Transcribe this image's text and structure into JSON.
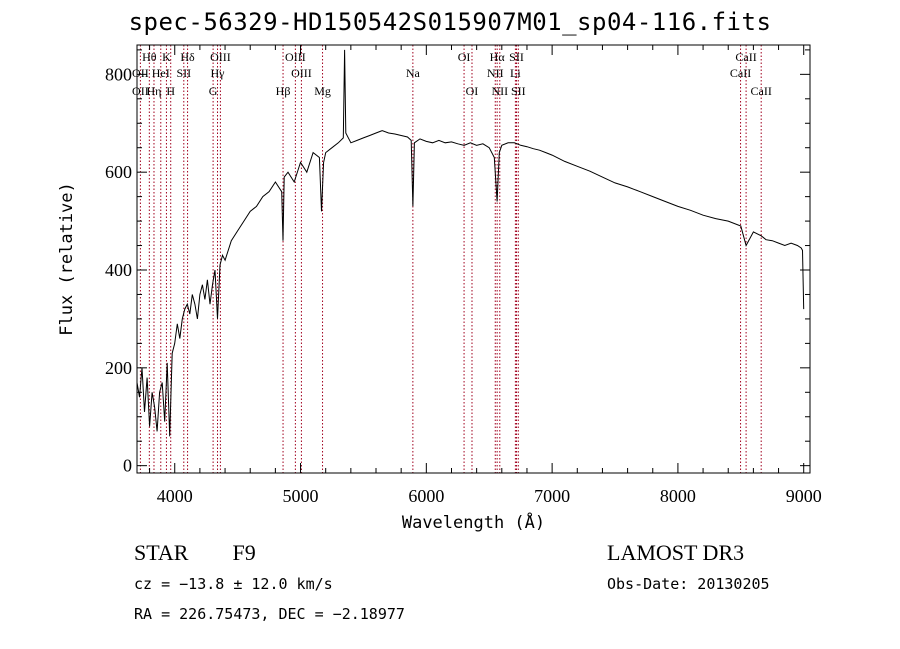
{
  "title": "spec-56329-HD150542S015907M01_sp04-116.fits",
  "info": {
    "class_label": "STAR",
    "subclass": "F9",
    "survey": "LAMOST DR3",
    "cz": "cz = −13.8 ± 12.0 km/s",
    "obs_date": "Obs-Date: 20130205",
    "radec": "RA = 226.75473, DEC =  −2.18977"
  },
  "colors": {
    "line_marker": "#a0001e",
    "spectrum": "#000000"
  },
  "chart_data": {
    "type": "line",
    "xlabel": "Wavelength (Å)",
    "ylabel": "Flux (relative)",
    "xlim": [
      3700,
      9050
    ],
    "ylim": [
      -15,
      860
    ],
    "xticks": [
      4000,
      5000,
      6000,
      7000,
      8000,
      9000
    ],
    "yticks": [
      0,
      200,
      400,
      600,
      800
    ],
    "xtick_labels": [
      "4000",
      "5000",
      "6000",
      "7000",
      "8000",
      "9000"
    ],
    "ytick_labels": [
      "0",
      "200",
      "400",
      "600",
      "800"
    ],
    "spectrum": {
      "x": [
        3700,
        3720,
        3740,
        3760,
        3780,
        3800,
        3820,
        3840,
        3860,
        3880,
        3900,
        3920,
        3940,
        3960,
        3980,
        4000,
        4020,
        4040,
        4060,
        4080,
        4100,
        4120,
        4140,
        4160,
        4180,
        4200,
        4220,
        4240,
        4260,
        4280,
        4300,
        4320,
        4340,
        4360,
        4380,
        4400,
        4450,
        4500,
        4550,
        4600,
        4650,
        4700,
        4750,
        4800,
        4850,
        4861,
        4870,
        4900,
        4950,
        5000,
        5050,
        5100,
        5150,
        5167,
        5183,
        5200,
        5250,
        5300,
        5340,
        5350,
        5360,
        5400,
        5450,
        5500,
        5550,
        5600,
        5650,
        5700,
        5750,
        5800,
        5850,
        5880,
        5893,
        5905,
        5950,
        6000,
        6050,
        6100,
        6150,
        6200,
        6250,
        6300,
        6350,
        6400,
        6450,
        6500,
        6540,
        6563,
        6580,
        6600,
        6650,
        6700,
        6750,
        6800,
        6850,
        6900,
        6950,
        7000,
        7100,
        7200,
        7300,
        7400,
        7500,
        7600,
        7700,
        7800,
        7900,
        8000,
        8100,
        8200,
        8300,
        8400,
        8500,
        8542,
        8600,
        8662,
        8700,
        8750,
        8800,
        8850,
        8900,
        8950,
        8980,
        8990,
        9000
      ],
      "y": [
        170,
        140,
        200,
        110,
        180,
        80,
        150,
        120,
        70,
        150,
        170,
        90,
        210,
        60,
        230,
        250,
        290,
        260,
        300,
        320,
        330,
        310,
        350,
        330,
        300,
        350,
        370,
        340,
        380,
        330,
        370,
        400,
        300,
        410,
        430,
        420,
        460,
        480,
        500,
        520,
        530,
        550,
        560,
        580,
        560,
        460,
        590,
        600,
        580,
        620,
        600,
        640,
        630,
        520,
        620,
        640,
        650,
        660,
        670,
        850,
        680,
        660,
        665,
        670,
        675,
        680,
        685,
        680,
        678,
        675,
        672,
        665,
        530,
        660,
        668,
        663,
        660,
        665,
        660,
        662,
        658,
        655,
        660,
        655,
        658,
        650,
        630,
        540,
        640,
        655,
        660,
        660,
        655,
        652,
        648,
        645,
        640,
        635,
        622,
        612,
        602,
        590,
        578,
        570,
        560,
        550,
        540,
        530,
        522,
        512,
        505,
        500,
        490,
        450,
        478,
        470,
        462,
        460,
        455,
        450,
        455,
        450,
        445,
        440,
        320
      ]
    },
    "lines": [
      {
        "label": "Hθ",
        "x": 3798,
        "row": 0
      },
      {
        "label": "OII",
        "x": 3727,
        "row": 1
      },
      {
        "label": "OII",
        "x": 3727,
        "row": 2
      },
      {
        "label": "Hη",
        "x": 3835,
        "row": 2
      },
      {
        "label": "HeI",
        "x": 3889,
        "row": 1
      },
      {
        "label": "K",
        "x": 3934,
        "row": 0
      },
      {
        "label": "H",
        "x": 3968,
        "row": 2
      },
      {
        "label": "Hδ",
        "x": 4102,
        "row": 0
      },
      {
        "label": "SII",
        "x": 4072,
        "row": 1
      },
      {
        "label": "OIII",
        "x": 4363,
        "row": 0
      },
      {
        "label": "Hγ",
        "x": 4340,
        "row": 1
      },
      {
        "label": "G",
        "x": 4305,
        "row": 2
      },
      {
        "label": "Hβ",
        "x": 4861,
        "row": 2
      },
      {
        "label": "OIII",
        "x": 4959,
        "row": 0
      },
      {
        "label": "OIII",
        "x": 5007,
        "row": 1
      },
      {
        "label": "Mg",
        "x": 5175,
        "row": 2
      },
      {
        "label": "Na",
        "x": 5893,
        "row": 1
      },
      {
        "label": "OI",
        "x": 6300,
        "row": 0
      },
      {
        "label": "OI",
        "x": 6363,
        "row": 2
      },
      {
        "label": "Hα",
        "x": 6563,
        "row": 0
      },
      {
        "label": "NII",
        "x": 6548,
        "row": 1
      },
      {
        "label": "NII",
        "x": 6584,
        "row": 2
      },
      {
        "label": "SII",
        "x": 6717,
        "row": 0
      },
      {
        "label": "Li",
        "x": 6708,
        "row": 1
      },
      {
        "label": "SII",
        "x": 6731,
        "row": 2
      },
      {
        "label": "CaII",
        "x": 8542,
        "row": 0
      },
      {
        "label": "CaII",
        "x": 8498,
        "row": 1
      },
      {
        "label": "CaII",
        "x": 8662,
        "row": 2
      }
    ]
  }
}
